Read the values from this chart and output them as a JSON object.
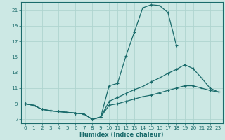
{
  "xlabel": "Humidex (Indice chaleur)",
  "bg_color": "#cce8e4",
  "line_color": "#1a6b6b",
  "grid_color": "#afd4cf",
  "xlim": [
    -0.5,
    23.5
  ],
  "ylim": [
    6.5,
    22.0
  ],
  "xticks": [
    0,
    1,
    2,
    3,
    4,
    5,
    6,
    7,
    8,
    9,
    10,
    11,
    12,
    13,
    14,
    15,
    16,
    17,
    18,
    19,
    20,
    21,
    22,
    23
  ],
  "yticks": [
    7,
    9,
    11,
    13,
    15,
    17,
    19,
    21
  ],
  "line1_x": [
    0,
    1,
    2,
    3,
    4,
    5,
    6,
    7,
    8,
    9,
    10,
    11,
    12,
    13,
    14,
    15,
    16,
    17,
    18
  ],
  "line1_y": [
    9.0,
    8.8,
    8.3,
    8.1,
    8.0,
    7.9,
    7.8,
    7.7,
    7.0,
    7.3,
    11.3,
    11.6,
    15.1,
    18.2,
    21.3,
    21.7,
    21.6,
    20.7,
    16.5
  ],
  "line2_x": [
    0,
    1,
    2,
    3,
    4,
    5,
    6,
    7,
    8,
    9,
    10,
    11,
    12,
    13,
    14,
    15,
    16,
    17,
    18,
    19,
    20,
    21,
    22,
    23
  ],
  "line2_y": [
    9.0,
    8.8,
    8.3,
    8.1,
    8.0,
    7.9,
    7.8,
    7.7,
    7.0,
    7.3,
    9.3,
    9.8,
    10.3,
    10.8,
    11.2,
    11.8,
    12.3,
    12.9,
    13.4,
    14.0,
    13.5,
    12.3,
    11.0,
    10.5
  ],
  "line3_x": [
    0,
    1,
    2,
    3,
    4,
    5,
    6,
    7,
    8,
    9,
    10,
    11,
    12,
    13,
    14,
    15,
    16,
    17,
    18,
    19,
    20,
    21,
    22,
    23
  ],
  "line3_y": [
    9.0,
    8.8,
    8.3,
    8.1,
    8.0,
    7.9,
    7.8,
    7.7,
    7.0,
    7.3,
    8.8,
    9.0,
    9.3,
    9.6,
    9.9,
    10.1,
    10.4,
    10.7,
    11.0,
    11.3,
    11.3,
    11.0,
    10.7,
    10.5
  ],
  "label_fontsize": 5.2,
  "xlabel_fontsize": 6.0
}
